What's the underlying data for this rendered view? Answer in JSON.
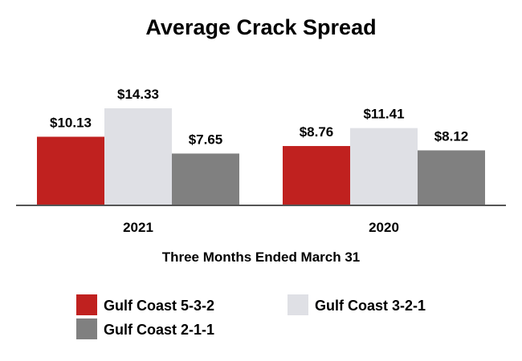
{
  "chart_data": {
    "type": "bar",
    "title": "Average Crack Spread",
    "xlabel": "Three Months Ended March 31",
    "ylabel": "",
    "categories": [
      "2021",
      "2020"
    ],
    "ylim": [
      0,
      14.33
    ],
    "grid": false,
    "legend_position": "bottom",
    "series": [
      {
        "name": "Gulf Coast 5-3-2",
        "color": "#c0211f",
        "values": [
          10.13,
          8.76
        ],
        "labels": [
          "$10.13",
          "$8.76"
        ]
      },
      {
        "name": "Gulf Coast 3-2-1",
        "color": "#dfe0e5",
        "values": [
          14.33,
          11.41
        ],
        "labels": [
          "$14.33",
          "$11.41"
        ]
      },
      {
        "name": "Gulf Coast 2-1-1",
        "color": "#808080",
        "values": [
          7.65,
          8.12
        ],
        "labels": [
          "$7.65",
          "$8.12"
        ]
      }
    ]
  }
}
